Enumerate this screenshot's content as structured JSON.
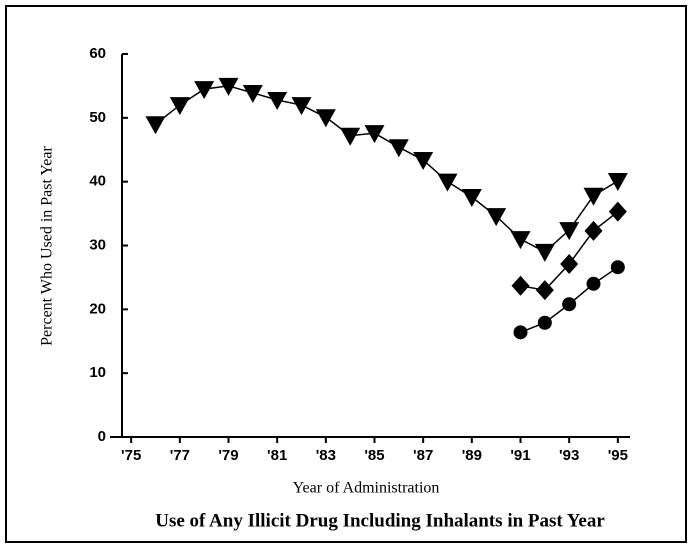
{
  "chart_data": {
    "type": "line",
    "title": "Use of Any Illicit Drug Including Inhalants in Past Year",
    "xlabel": "Year of Administration",
    "ylabel": "Percent Who Used in Past Year",
    "xlim": [
      1974.5,
      1995.5
    ],
    "xticks": [
      {
        "value": 1975,
        "label": "'75"
      },
      {
        "value": 1977,
        "label": "'77"
      },
      {
        "value": 1979,
        "label": "'79"
      },
      {
        "value": 1981,
        "label": "'81"
      },
      {
        "value": 1983,
        "label": "'83"
      },
      {
        "value": 1985,
        "label": "'85"
      },
      {
        "value": 1987,
        "label": "'87"
      },
      {
        "value": 1989,
        "label": "'89"
      },
      {
        "value": 1991,
        "label": "'91"
      },
      {
        "value": 1993,
        "label": "'93"
      },
      {
        "value": 1995,
        "label": "'95"
      }
    ],
    "ylim": [
      0,
      60
    ],
    "yticks": [
      0,
      10,
      20,
      30,
      40,
      50,
      60
    ],
    "grid": false,
    "series": [
      {
        "color": "#000000",
        "marker": "triangle-down",
        "x": [
          1976,
          1977,
          1978,
          1979,
          1980,
          1981,
          1982,
          1983,
          1984,
          1985,
          1986,
          1987,
          1988,
          1989,
          1990,
          1991,
          1992,
          1993,
          1994,
          1995
        ],
        "values": [
          49.0,
          52.0,
          54.5,
          55.0,
          53.9,
          52.8,
          52.0,
          50.1,
          47.2,
          47.6,
          45.4,
          43.4,
          40.0,
          37.6,
          34.6,
          31.0,
          29.0,
          32.4,
          37.8,
          40.1
        ]
      },
      {
        "color": "#000000",
        "marker": "diamond",
        "x": [
          1991,
          1992,
          1993,
          1994,
          1995
        ],
        "values": [
          23.7,
          23.0,
          27.1,
          32.3,
          35.3
        ]
      },
      {
        "color": "#000000",
        "marker": "circle",
        "x": [
          1991,
          1992,
          1993,
          1994,
          1995
        ],
        "values": [
          16.4,
          17.9,
          20.8,
          24.0,
          26.6
        ]
      }
    ]
  }
}
